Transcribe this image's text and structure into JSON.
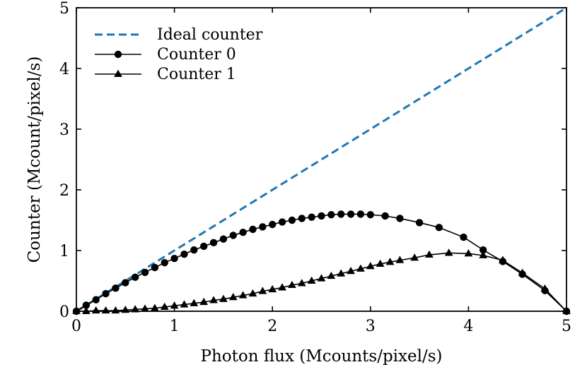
{
  "chart_data": {
    "type": "line",
    "xlabel": "Photon flux (Mcounts/pixel/s)",
    "ylabel": "Counter (Mcount/pixel/s)",
    "xlim": [
      0,
      5
    ],
    "ylim": [
      0,
      5
    ],
    "xticks": [
      "0",
      "1",
      "2",
      "3",
      "4",
      "5"
    ],
    "yticks": [
      "0",
      "1",
      "2",
      "3",
      "4",
      "5"
    ],
    "grid": false,
    "legend_position": "top-left",
    "series": [
      {
        "name": "Ideal counter",
        "style": "dashed",
        "marker": "none",
        "color": "#1f77b4",
        "points": [
          [
            0,
            0
          ],
          [
            5,
            5
          ]
        ]
      },
      {
        "name": "Counter 0",
        "style": "solid",
        "marker": "circle",
        "color": "#000000",
        "points": [
          [
            0.0,
            0.0
          ],
          [
            0.1,
            0.1
          ],
          [
            0.2,
            0.19
          ],
          [
            0.3,
            0.29
          ],
          [
            0.4,
            0.38
          ],
          [
            0.5,
            0.47
          ],
          [
            0.6,
            0.56
          ],
          [
            0.7,
            0.64
          ],
          [
            0.8,
            0.72
          ],
          [
            0.9,
            0.8
          ],
          [
            1.0,
            0.87
          ],
          [
            1.1,
            0.94
          ],
          [
            1.2,
            1.01
          ],
          [
            1.3,
            1.07
          ],
          [
            1.4,
            1.13
          ],
          [
            1.5,
            1.19
          ],
          [
            1.6,
            1.25
          ],
          [
            1.7,
            1.3
          ],
          [
            1.8,
            1.35
          ],
          [
            1.9,
            1.39
          ],
          [
            2.0,
            1.43
          ],
          [
            2.1,
            1.47
          ],
          [
            2.2,
            1.5
          ],
          [
            2.3,
            1.53
          ],
          [
            2.4,
            1.55
          ],
          [
            2.5,
            1.57
          ],
          [
            2.6,
            1.59
          ],
          [
            2.7,
            1.6
          ],
          [
            2.8,
            1.6
          ],
          [
            2.9,
            1.6
          ],
          [
            3.0,
            1.59
          ],
          [
            3.15,
            1.57
          ],
          [
            3.3,
            1.53
          ],
          [
            3.5,
            1.46
          ],
          [
            3.7,
            1.38
          ],
          [
            3.95,
            1.22
          ],
          [
            4.15,
            1.01
          ],
          [
            4.35,
            0.82
          ],
          [
            4.55,
            0.61
          ],
          [
            4.78,
            0.34
          ],
          [
            5.0,
            0.0
          ]
        ]
      },
      {
        "name": "Counter 1",
        "style": "solid",
        "marker": "triangle",
        "color": "#000000",
        "points": [
          [
            0.0,
            0.0
          ],
          [
            0.1,
            0.0
          ],
          [
            0.2,
            0.01
          ],
          [
            0.3,
            0.01
          ],
          [
            0.4,
            0.01
          ],
          [
            0.5,
            0.02
          ],
          [
            0.6,
            0.03
          ],
          [
            0.7,
            0.04
          ],
          [
            0.8,
            0.05
          ],
          [
            0.9,
            0.07
          ],
          [
            1.0,
            0.09
          ],
          [
            1.1,
            0.11
          ],
          [
            1.2,
            0.13
          ],
          [
            1.3,
            0.15
          ],
          [
            1.4,
            0.18
          ],
          [
            1.5,
            0.2
          ],
          [
            1.6,
            0.23
          ],
          [
            1.7,
            0.26
          ],
          [
            1.8,
            0.29
          ],
          [
            1.9,
            0.33
          ],
          [
            2.0,
            0.36
          ],
          [
            2.1,
            0.39
          ],
          [
            2.2,
            0.43
          ],
          [
            2.3,
            0.46
          ],
          [
            2.4,
            0.5
          ],
          [
            2.5,
            0.54
          ],
          [
            2.6,
            0.58
          ],
          [
            2.7,
            0.62
          ],
          [
            2.8,
            0.66
          ],
          [
            2.9,
            0.7
          ],
          [
            3.0,
            0.74
          ],
          [
            3.1,
            0.78
          ],
          [
            3.2,
            0.81
          ],
          [
            3.3,
            0.84
          ],
          [
            3.45,
            0.88
          ],
          [
            3.6,
            0.93
          ],
          [
            3.8,
            0.96
          ],
          [
            4.0,
            0.95
          ],
          [
            4.15,
            0.92
          ],
          [
            4.35,
            0.84
          ],
          [
            4.55,
            0.63
          ],
          [
            4.78,
            0.37
          ],
          [
            5.0,
            0.0
          ]
        ]
      }
    ]
  }
}
